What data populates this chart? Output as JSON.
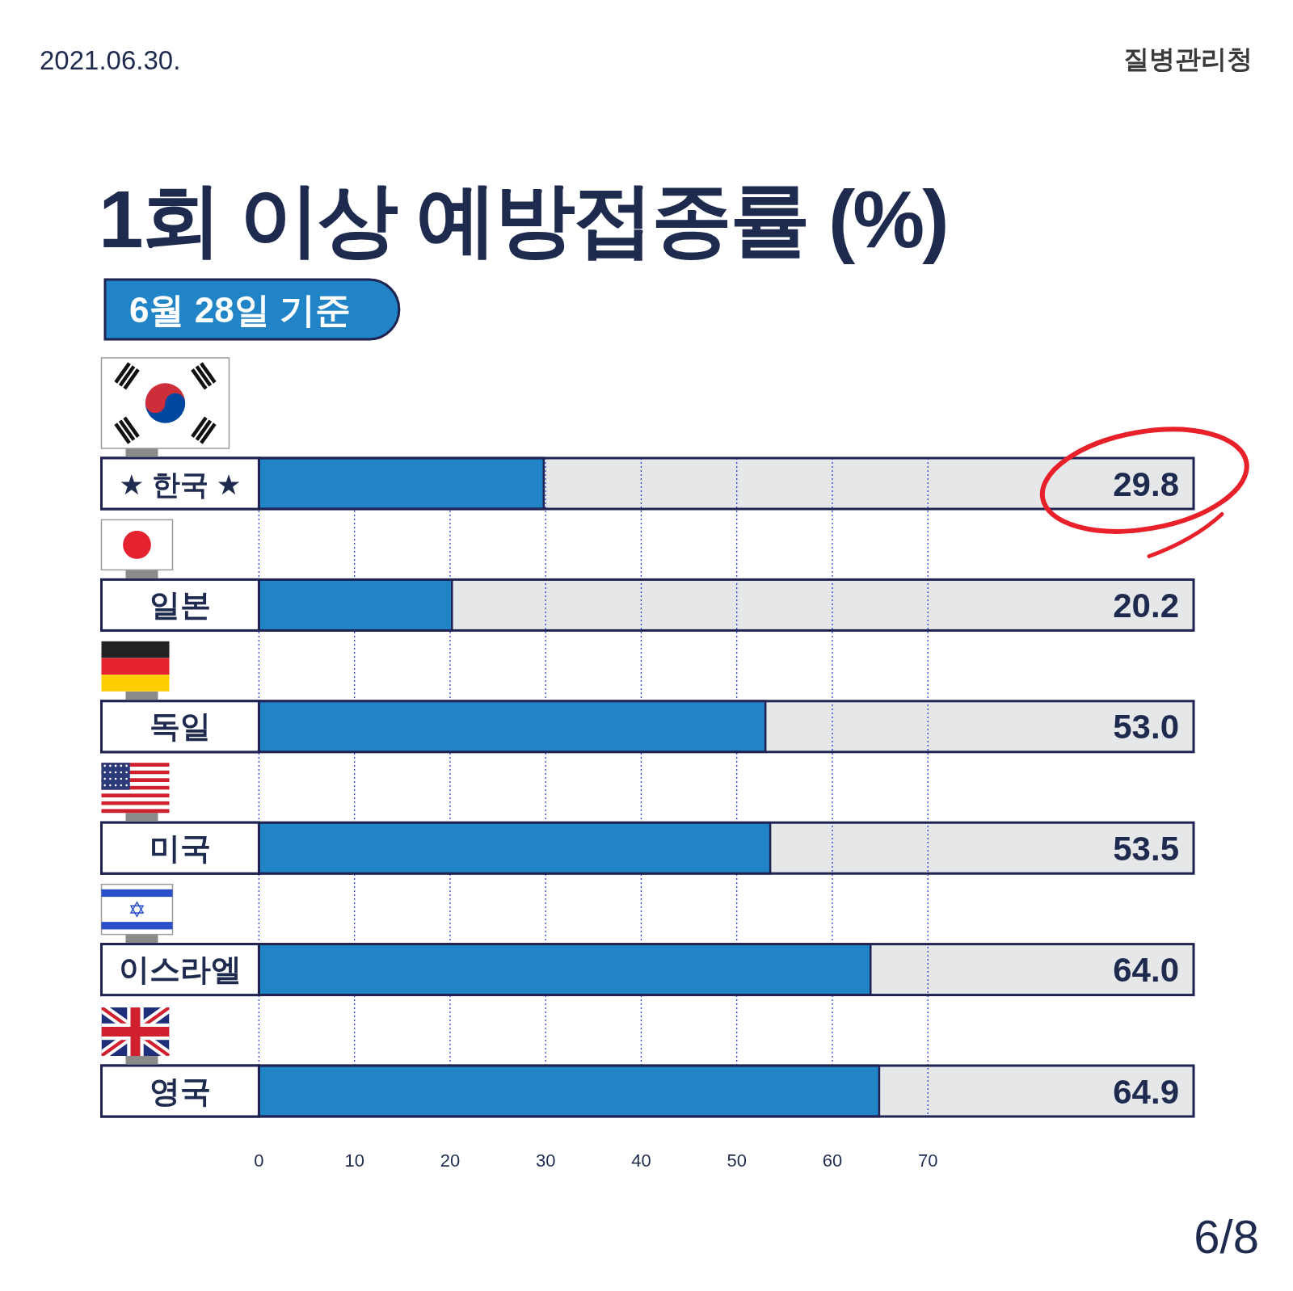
{
  "chart_data": {
    "type": "bar",
    "orientation": "horizontal",
    "title": "1회 이상 예방접종률 (%)",
    "subtitle": "6월 28일 기준",
    "categories": [
      "★ 한국 ★",
      "일본",
      "독일",
      "미국",
      "이스라엘",
      "영국"
    ],
    "values": [
      29.8,
      20.2,
      53.0,
      53.5,
      64.0,
      64.9
    ],
    "color": "#2184c6",
    "value_labels": [
      "29.8",
      "20.2",
      "53.0",
      "53.5",
      "64.0",
      "64.9"
    ],
    "xlim": [
      0,
      97.8
    ],
    "xticks": [
      0,
      10,
      20,
      30,
      40,
      50,
      60,
      70
    ],
    "grid": "x",
    "annotations": [
      "2021.06.30.",
      "질병관리청",
      "6/8"
    ]
  }
}
